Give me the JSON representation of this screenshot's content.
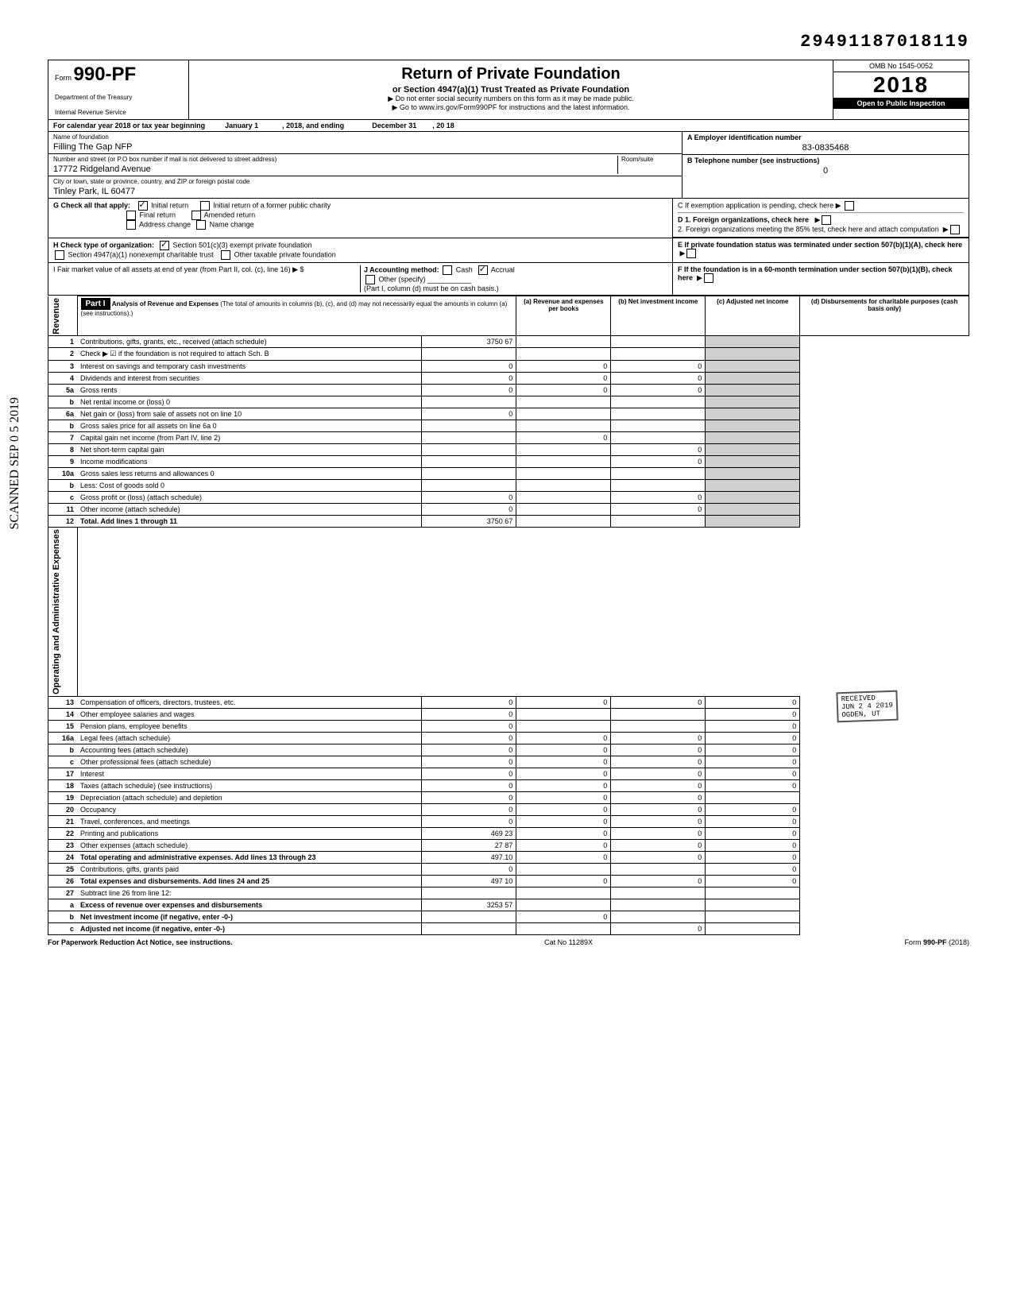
{
  "page_stamp": "29491187018119",
  "form": {
    "prefix": "Form",
    "number": "990-PF",
    "dept1": "Department of the Treasury",
    "dept2": "Internal Revenue Service"
  },
  "header": {
    "title": "Return of Private Foundation",
    "subtitle": "or Section 4947(a)(1) Trust Treated as Private Foundation",
    "line1": "▶ Do not enter social security numbers on this form as it may be made public.",
    "line2": "▶ Go to www.irs.gov/Form990PF for instructions and the latest information.",
    "omb": "OMB No 1545-0052",
    "year": "2018",
    "inspection": "Open to Public Inspection"
  },
  "cal_year": {
    "label": "For calendar year 2018 or tax year beginning",
    "begin": "January 1",
    "mid": ", 2018, and ending",
    "end": "December 31",
    "endyear": ", 20   18"
  },
  "foundation": {
    "name_label": "Name of foundation",
    "name": "Filling The Gap NFP",
    "street_label": "Number and street (or P.O box number if mail is not delivered to street address)",
    "street": "17772 Ridgeland Avenue",
    "room_label": "Room/suite",
    "room": "",
    "city_label": "City or town, state or province, country, and ZIP or foreign postal code",
    "city": "Tinley Park, IL 60477"
  },
  "right_info": {
    "a_label": "A  Employer identification number",
    "a_value": "83-0835468",
    "b_label": "B  Telephone number (see instructions)",
    "b_value": "0",
    "c_label": "C  If exemption application is pending, check here ▶",
    "d1_label": "D  1. Foreign organizations, check here",
    "d2_label": "2. Foreign organizations meeting the 85% test, check here and attach computation",
    "e_label": "E  If private foundation status was terminated under section 507(b)(1)(A), check here",
    "f_label": "F  If the foundation is in a 60-month termination under section 507(b)(1)(B), check here"
  },
  "g": {
    "label": "G   Check all that apply:",
    "opts": [
      "Initial return",
      "Initial return of a former public charity",
      "Final return",
      "Amended return",
      "Address change",
      "Name change"
    ]
  },
  "h": {
    "label": "H   Check type of organization:",
    "opts": [
      "Section 501(c)(3) exempt private foundation",
      "Section 4947(a)(1) nonexempt charitable trust",
      "Other taxable private foundation"
    ]
  },
  "i": {
    "label": "I    Fair market value of all assets at end of year (from Part II, col. (c), line 16) ▶ $"
  },
  "j": {
    "label": "J   Accounting method:",
    "opts": [
      "Cash",
      "Accrual",
      "Other (specify)"
    ],
    "note": "(Part I, column (d) must be on cash basis.)"
  },
  "part1": {
    "label": "Part I",
    "title": "Analysis of Revenue and Expenses",
    "desc": "(The total of amounts in columns (b), (c), and (d) may not necessarily equal the amounts in column (a) (see instructions).)",
    "col_a": "(a) Revenue and expenses per books",
    "col_b": "(b) Net investment income",
    "col_c": "(c) Adjusted net income",
    "col_d": "(d) Disbursements for charitable purposes (cash basis only)"
  },
  "revenue_label": "Revenue",
  "expenses_label": "Operating and Administrative Expenses",
  "lines": [
    {
      "n": "1",
      "d": "Contributions, gifts, grants, etc., received (attach schedule)",
      "a": "3750 67",
      "b": "",
      "c": "",
      "dd": ""
    },
    {
      "n": "2",
      "d": "Check ▶ ☑ if the foundation is not required to attach Sch. B",
      "a": "",
      "b": "",
      "c": "",
      "dd": ""
    },
    {
      "n": "3",
      "d": "Interest on savings and temporary cash investments",
      "a": "0",
      "b": "0",
      "c": "0",
      "dd": ""
    },
    {
      "n": "4",
      "d": "Dividends and interest from securities",
      "a": "0",
      "b": "0",
      "c": "0",
      "dd": ""
    },
    {
      "n": "5a",
      "d": "Gross rents",
      "a": "0",
      "b": "0",
      "c": "0",
      "dd": ""
    },
    {
      "n": "b",
      "d": "Net rental income or (loss)                                          0",
      "a": "",
      "b": "",
      "c": "",
      "dd": ""
    },
    {
      "n": "6a",
      "d": "Net gain or (loss) from sale of assets not on line 10",
      "a": "0",
      "b": "",
      "c": "",
      "dd": ""
    },
    {
      "n": "b",
      "d": "Gross sales price for all assets on line 6a                    0",
      "a": "",
      "b": "",
      "c": "",
      "dd": ""
    },
    {
      "n": "7",
      "d": "Capital gain net income (from Part IV, line 2)",
      "a": "",
      "b": "0",
      "c": "",
      "dd": ""
    },
    {
      "n": "8",
      "d": "Net short-term capital gain",
      "a": "",
      "b": "",
      "c": "0",
      "dd": ""
    },
    {
      "n": "9",
      "d": "Income modifications",
      "a": "",
      "b": "",
      "c": "0",
      "dd": ""
    },
    {
      "n": "10a",
      "d": "Gross sales less returns and allowances               0",
      "a": "",
      "b": "",
      "c": "",
      "dd": ""
    },
    {
      "n": "b",
      "d": "Less: Cost of goods sold                                          0",
      "a": "",
      "b": "",
      "c": "",
      "dd": ""
    },
    {
      "n": "c",
      "d": "Gross profit or (loss) (attach schedule)",
      "a": "0",
      "b": "",
      "c": "0",
      "dd": ""
    },
    {
      "n": "11",
      "d": "Other income (attach schedule)",
      "a": "0",
      "b": "",
      "c": "0",
      "dd": ""
    },
    {
      "n": "12",
      "d": "Total. Add lines 1 through 11",
      "a": "3750 67",
      "b": "",
      "c": "",
      "dd": "",
      "bold": true
    }
  ],
  "exp_lines": [
    {
      "n": "13",
      "d": "Compensation of officers, directors, trustees, etc.",
      "a": "0",
      "b": "0",
      "c": "0",
      "dd": "0"
    },
    {
      "n": "14",
      "d": "Other employee salaries and wages",
      "a": "0",
      "b": "",
      "c": "",
      "dd": "0"
    },
    {
      "n": "15",
      "d": "Pension plans, employee benefits",
      "a": "0",
      "b": "",
      "c": "",
      "dd": "0"
    },
    {
      "n": "16a",
      "d": "Legal fees (attach schedule)",
      "a": "0",
      "b": "0",
      "c": "0",
      "dd": "0"
    },
    {
      "n": "b",
      "d": "Accounting fees (attach schedule)",
      "a": "0",
      "b": "0",
      "c": "0",
      "dd": "0"
    },
    {
      "n": "c",
      "d": "Other professional fees (attach schedule)",
      "a": "0",
      "b": "0",
      "c": "0",
      "dd": "0"
    },
    {
      "n": "17",
      "d": "Interest",
      "a": "0",
      "b": "0",
      "c": "0",
      "dd": "0"
    },
    {
      "n": "18",
      "d": "Taxes (attach schedule) (see instructions)",
      "a": "0",
      "b": "0",
      "c": "0",
      "dd": "0"
    },
    {
      "n": "19",
      "d": "Depreciation (attach schedule) and depletion",
      "a": "0",
      "b": "0",
      "c": "0",
      "dd": ""
    },
    {
      "n": "20",
      "d": "Occupancy",
      "a": "0",
      "b": "0",
      "c": "0",
      "dd": "0"
    },
    {
      "n": "21",
      "d": "Travel, conferences, and meetings",
      "a": "0",
      "b": "0",
      "c": "0",
      "dd": "0"
    },
    {
      "n": "22",
      "d": "Printing and publications",
      "a": "469 23",
      "b": "0",
      "c": "0",
      "dd": "0"
    },
    {
      "n": "23",
      "d": "Other expenses (attach schedule)",
      "a": "27 87",
      "b": "0",
      "c": "0",
      "dd": "0"
    },
    {
      "n": "24",
      "d": "Total operating and administrative expenses. Add lines 13 through 23",
      "a": "497.10",
      "b": "0",
      "c": "0",
      "dd": "0",
      "bold": true
    },
    {
      "n": "25",
      "d": "Contributions, gifts, grants paid",
      "a": "0",
      "b": "",
      "c": "",
      "dd": "0"
    },
    {
      "n": "26",
      "d": "Total expenses and disbursements. Add lines 24 and 25",
      "a": "497 10",
      "b": "0",
      "c": "0",
      "dd": "0",
      "bold": true
    },
    {
      "n": "27",
      "d": "Subtract line 26 from line 12:",
      "a": "",
      "b": "",
      "c": "",
      "dd": ""
    },
    {
      "n": "a",
      "d": "Excess of revenue over expenses and disbursements",
      "a": "3253 57",
      "b": "",
      "c": "",
      "dd": "",
      "bold": true
    },
    {
      "n": "b",
      "d": "Net investment income (if negative, enter -0-)",
      "a": "",
      "b": "0",
      "c": "",
      "dd": "",
      "bold": true
    },
    {
      "n": "c",
      "d": "Adjusted net income (if negative, enter -0-)",
      "a": "",
      "b": "",
      "c": "0",
      "dd": "",
      "bold": true
    }
  ],
  "footer": {
    "left": "For Paperwork Reduction Act Notice, see instructions.",
    "center": "Cat No 11289X",
    "right": "Form 990-PF (2018)"
  },
  "side_stamp": "SCANNED SEP 0 5 2019",
  "received_stamp": {
    "l1": "RECEIVED",
    "l2": "JUN 2 4 2019",
    "l3": "OGDEN, UT"
  }
}
